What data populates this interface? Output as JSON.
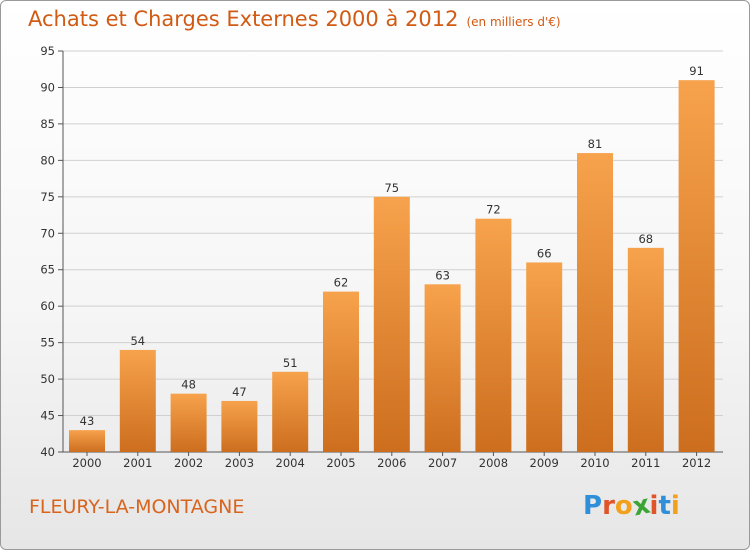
{
  "header": {
    "title": "Achats et Charges Externes 2000 à 2012",
    "unit": "(en milliers d'€)"
  },
  "footer": {
    "commune": "FLEURY-LA-MONTAGNE",
    "logo_text": "Proxiti",
    "logo_letters": [
      "P",
      "r",
      "o",
      "x",
      "i",
      "t",
      "i"
    ],
    "logo_colors": [
      "#2f8fd8",
      "#e0542a",
      "#f2a11c",
      "#3aa535",
      "#e0542a",
      "#2f8fd8",
      "#f2a11c"
    ]
  },
  "colors": {
    "bar_top": "#f7a24c",
    "bar_bottom": "#cc6e1e",
    "axis": "#555555",
    "grid": "#d0d0d0",
    "accent": "#d15a14"
  },
  "chart_data": {
    "type": "bar",
    "title": "Achats et Charges Externes 2000 à 2012",
    "subtitle": "(en milliers d'€)",
    "xlabel": "",
    "ylabel": "",
    "categories": [
      "2000",
      "2001",
      "2002",
      "2003",
      "2004",
      "2005",
      "2006",
      "2007",
      "2008",
      "2009",
      "2010",
      "2011",
      "2012"
    ],
    "values": [
      43,
      54,
      48,
      47,
      51,
      62,
      75,
      63,
      72,
      66,
      81,
      68,
      91
    ],
    "ylim": [
      40,
      95
    ],
    "yticks": [
      40,
      45,
      50,
      55,
      60,
      65,
      70,
      75,
      80,
      85,
      90,
      95
    ],
    "data_labels": true,
    "legend": "none"
  }
}
